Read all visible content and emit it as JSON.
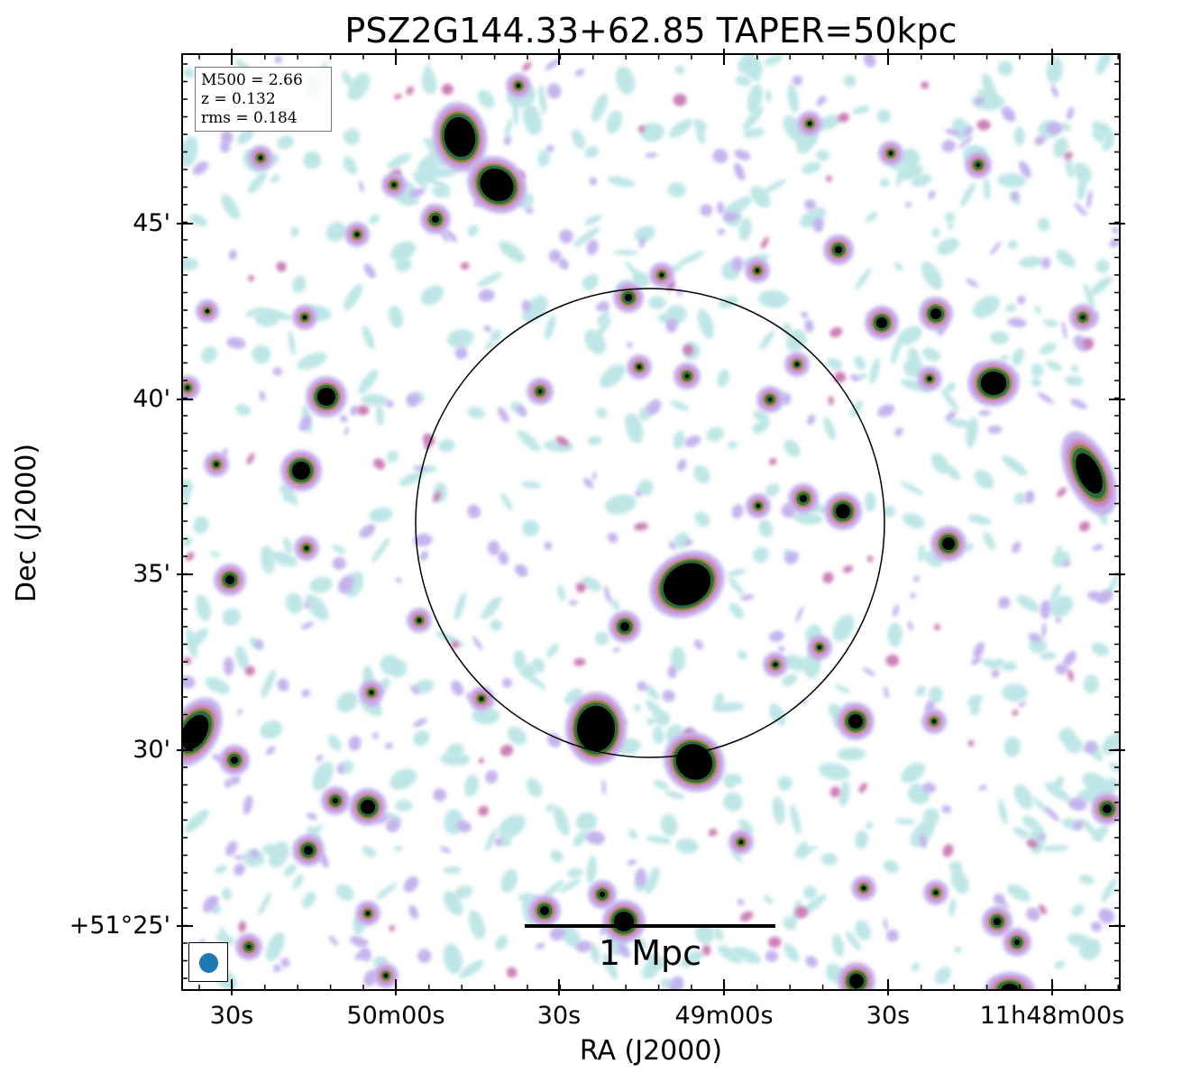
{
  "title": "PSZ2G144.33+62.85 TAPER=50kpc",
  "xlabel": "RA (J2000)",
  "ylabel": "Dec (J2000)",
  "ra_ticks": [
    "30s",
    "50m00s",
    "30s",
    "49m00s",
    "30s",
    "11h48m00s"
  ],
  "dec_ticks": [
    "45'",
    "40'",
    "35'",
    "30'",
    "+51°25'"
  ],
  "info_box": [
    "M500 = 2.66",
    "z = 0.132",
    "rms = 0.184"
  ],
  "scale_bar": "1 Mpc",
  "colors": {
    "faint": "#bfe6e6",
    "lavender": "#c4b4ee",
    "pink": "#cc7fb6",
    "olive": "#8a8a3a",
    "green": "#2e6a3f",
    "core": "#000000",
    "beam": "#1f77b4"
  }
}
